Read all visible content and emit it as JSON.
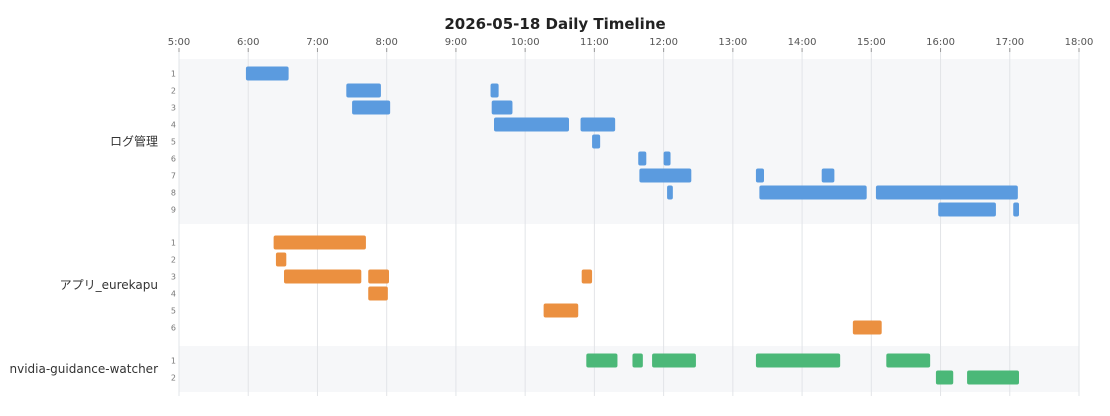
{
  "chart_data": {
    "type": "timeline",
    "title": "2026-05-18 Daily Timeline",
    "xlim": [
      "5:00",
      "18:00"
    ],
    "x_ticks": [
      "5:00",
      "6:00",
      "7:00",
      "8:00",
      "9:00",
      "10:00",
      "11:00",
      "12:00",
      "13:00",
      "14:00",
      "15:00",
      "16:00",
      "17:00",
      "18:00"
    ],
    "grid": true,
    "groups": [
      {
        "name": "ログ管理",
        "color": "#5b9bdf",
        "shaded": true,
        "lanes": [
          {
            "label": "1",
            "bars": [
              [
                "5:58",
                "6:35"
              ]
            ]
          },
          {
            "label": "2",
            "bars": [
              [
                "7:25",
                "7:55"
              ],
              [
                "9:30",
                "9:37"
              ]
            ]
          },
          {
            "label": "3",
            "bars": [
              [
                "7:30",
                "8:03"
              ],
              [
                "9:31",
                "9:49"
              ]
            ]
          },
          {
            "label": "4",
            "bars": [
              [
                "9:33",
                "10:38"
              ],
              [
                "10:48",
                "11:18"
              ]
            ]
          },
          {
            "label": "5",
            "bars": [
              [
                "10:58",
                "11:05"
              ]
            ]
          },
          {
            "label": "6",
            "bars": [
              [
                "11:38",
                "11:45"
              ],
              [
                "12:00",
                "12:06"
              ]
            ]
          },
          {
            "label": "7",
            "bars": [
              [
                "11:39",
                "12:24"
              ],
              [
                "13:20",
                "13:27"
              ],
              [
                "14:17",
                "14:28"
              ]
            ]
          },
          {
            "label": "8",
            "bars": [
              [
                "12:03",
                "12:08"
              ],
              [
                "13:23",
                "14:56"
              ],
              [
                "15:04",
                "17:07"
              ]
            ]
          },
          {
            "label": "9",
            "bars": [
              [
                "15:58",
                "16:48"
              ],
              [
                "17:03",
                "17:08"
              ]
            ]
          }
        ]
      },
      {
        "name": "アプリ_eurekapu",
        "color": "#eb9040",
        "shaded": false,
        "lanes": [
          {
            "label": "1",
            "bars": [
              [
                "6:22",
                "7:42"
              ]
            ]
          },
          {
            "label": "2",
            "bars": [
              [
                "6:24",
                "6:33"
              ]
            ]
          },
          {
            "label": "3",
            "bars": [
              [
                "6:31",
                "7:38"
              ],
              [
                "7:44",
                "8:02"
              ],
              [
                "10:49",
                "10:58"
              ]
            ]
          },
          {
            "label": "4",
            "bars": [
              [
                "7:44",
                "8:01"
              ]
            ]
          },
          {
            "label": "5",
            "bars": [
              [
                "10:16",
                "10:46"
              ]
            ]
          },
          {
            "label": "6",
            "bars": [
              [
                "14:44",
                "15:09"
              ]
            ]
          }
        ]
      },
      {
        "name": "nvidia-guidance-watcher",
        "color": "#4bb878",
        "shaded": true,
        "lanes": [
          {
            "label": "1",
            "bars": [
              [
                "10:53",
                "11:20"
              ],
              [
                "11:33",
                "11:42"
              ],
              [
                "11:50",
                "12:28"
              ],
              [
                "13:20",
                "14:33"
              ],
              [
                "15:13",
                "15:51"
              ]
            ]
          },
          {
            "label": "2",
            "bars": [
              [
                "15:56",
                "16:11"
              ],
              [
                "16:23",
                "17:08"
              ]
            ]
          }
        ]
      }
    ]
  }
}
